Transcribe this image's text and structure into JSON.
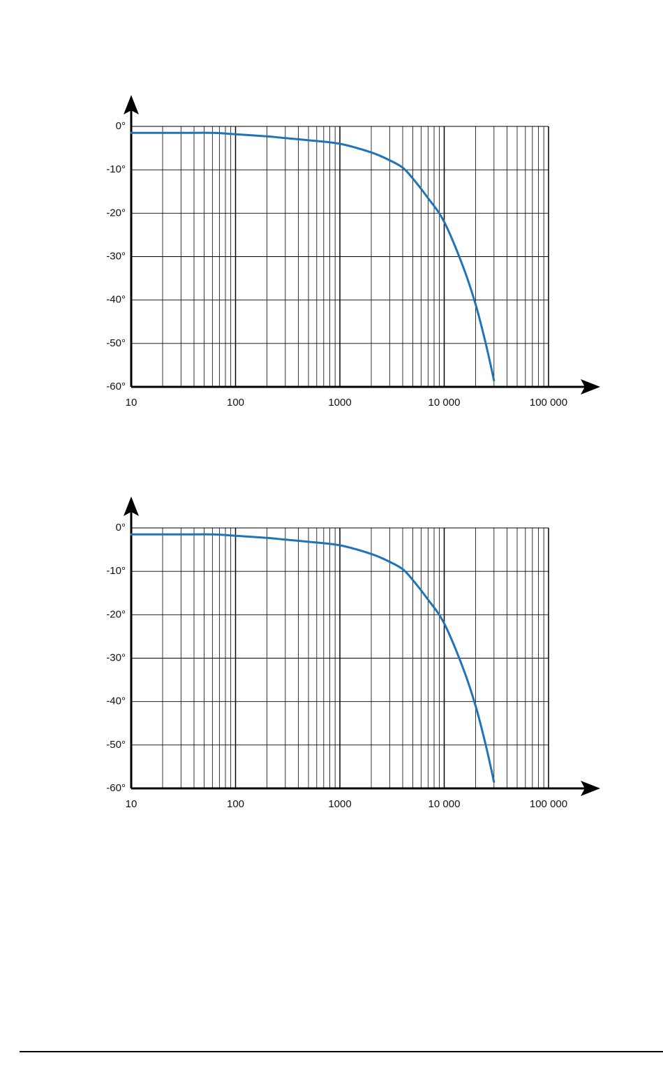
{
  "colors": {
    "curve": "#1f73b7",
    "grid": "#000000",
    "axis": "#000000",
    "background": "#ffffff"
  },
  "chart_data": [
    {
      "type": "line",
      "title": "",
      "xlabel": "",
      "ylabel": "",
      "x_scale": "log",
      "xlim": [
        10,
        100000
      ],
      "ylim": [
        -60,
        0
      ],
      "grid": true,
      "x_tick_labels": [
        "10",
        "100",
        "1000",
        "10 000",
        "100 000"
      ],
      "y_tick_labels": [
        "0°",
        "-10°",
        "-20°",
        "-30°",
        "-40°",
        "-50°",
        "-60°"
      ],
      "series": [
        {
          "x": [
            10,
            30,
            60,
            100,
            200,
            300,
            500,
            1000,
            2000,
            3000,
            4000,
            5000,
            7000,
            10000,
            15000,
            20000,
            25000,
            30000
          ],
          "y": [
            -1.5,
            -1.5,
            -1.5,
            -1.8,
            -2.3,
            -2.7,
            -3.2,
            -4.0,
            -6.0,
            -7.8,
            -9.5,
            -12.0,
            -16.5,
            -22.0,
            -32.0,
            -41.0,
            -50.0,
            -58.5
          ]
        }
      ]
    },
    {
      "type": "line",
      "title": "",
      "xlabel": "",
      "ylabel": "",
      "x_scale": "log",
      "xlim": [
        10,
        100000
      ],
      "ylim": [
        -60,
        0
      ],
      "grid": true,
      "x_tick_labels": [
        "10",
        "100",
        "1000",
        "10 000",
        "100 000"
      ],
      "y_tick_labels": [
        "0°",
        "-10°",
        "-20°",
        "-30°",
        "-40°",
        "-50°",
        "-60°"
      ],
      "series": [
        {
          "x": [
            10,
            30,
            60,
            100,
            200,
            300,
            500,
            1000,
            2000,
            3000,
            4000,
            5000,
            7000,
            10000,
            15000,
            20000,
            25000,
            30000
          ],
          "y": [
            -1.5,
            -1.5,
            -1.5,
            -1.8,
            -2.3,
            -2.7,
            -3.2,
            -4.0,
            -6.0,
            -7.8,
            -9.5,
            -12.0,
            -16.5,
            -22.0,
            -32.0,
            -41.0,
            -50.0,
            -58.5
          ]
        }
      ]
    }
  ]
}
